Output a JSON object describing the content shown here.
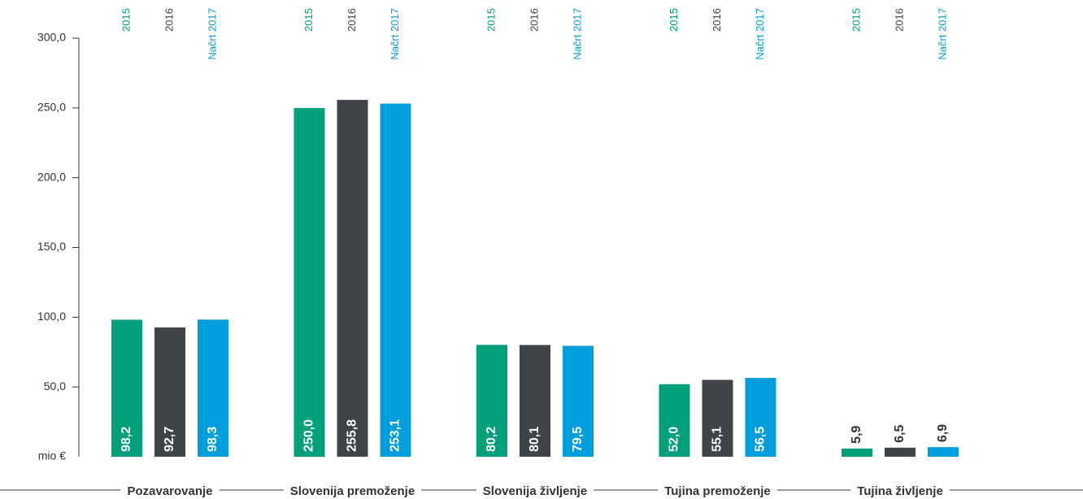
{
  "chart_data": {
    "type": "bar",
    "ylabel": "mio €",
    "categories": [
      "Pozavarovanje",
      "Slovenija premoženje",
      "Slovenija življenje",
      "Tujina premoženje",
      "Tujina življenje"
    ],
    "series": [
      {
        "name": "2015",
        "color": "#00a07a",
        "values": [
          98.2,
          250.0,
          80.2,
          52.0,
          5.9
        ],
        "value_labels": [
          "98,2",
          "250,0",
          "80,2",
          "52,0",
          "5,9"
        ]
      },
      {
        "name": "2016",
        "color": "#404448",
        "values": [
          92.7,
          255.8,
          80.1,
          55.1,
          6.5
        ],
        "value_labels": [
          "92,7",
          "255,8",
          "80,1",
          "55,1",
          "6,5"
        ]
      },
      {
        "name": "Načrt 2017",
        "color": "#009fdb",
        "values": [
          98.3,
          253.1,
          79.5,
          56.5,
          6.9
        ],
        "value_labels": [
          "98,3",
          "253,1",
          "79,5",
          "56,5",
          "6,9"
        ]
      }
    ],
    "ylim": [
      0,
      300
    ],
    "yticks": [
      {
        "value": 50,
        "label": "50,0"
      },
      {
        "value": 100,
        "label": "100,0"
      },
      {
        "value": 150,
        "label": "150,0"
      },
      {
        "value": 200,
        "label": "200,0"
      },
      {
        "value": 250,
        "label": "250,0"
      },
      {
        "value": 300,
        "label": "300,0"
      }
    ]
  }
}
